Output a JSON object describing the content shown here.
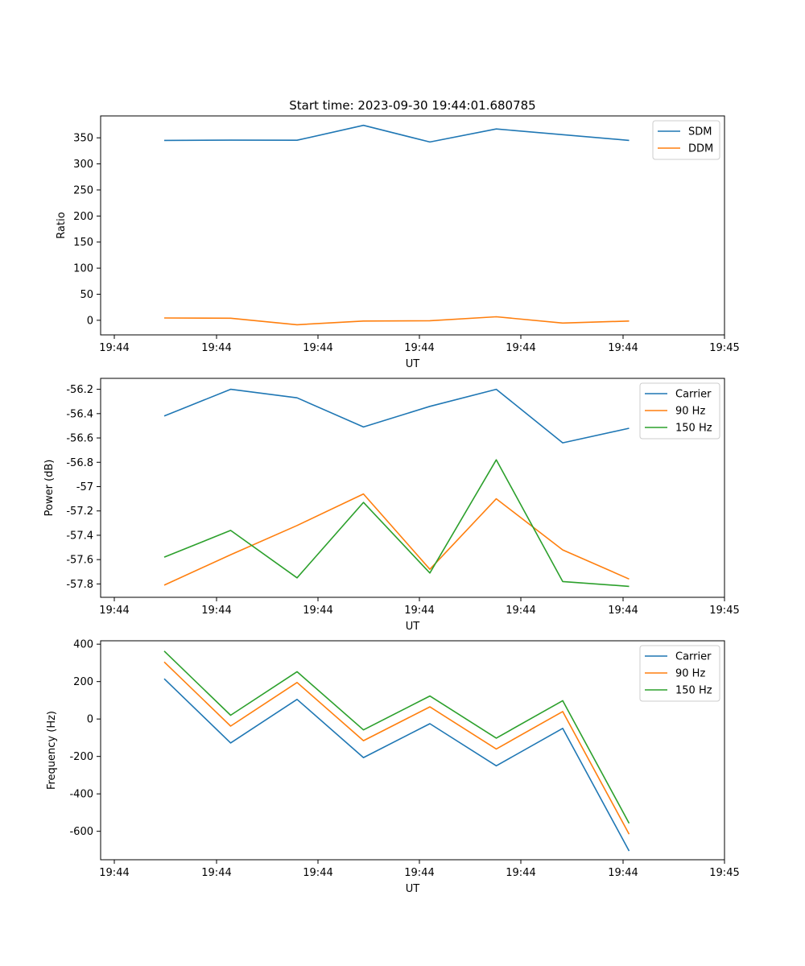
{
  "chart_data": [
    {
      "type": "line",
      "title": "Start time: 2023-09-30 19:44:01.680785",
      "xlabel": "UT",
      "ylabel": "Ratio",
      "xticks": [
        "19:44",
        "19:44",
        "19:44",
        "19:44",
        "19:44",
        "19:44",
        "19:45"
      ],
      "yticks": [
        0,
        50,
        100,
        150,
        200,
        250,
        300,
        350
      ],
      "ylim": [
        -28,
        392
      ],
      "x": [
        1,
        2,
        3,
        4,
        5,
        6,
        7,
        8
      ],
      "legend_position": "top-right",
      "series": [
        {
          "name": "SDM",
          "color": "#1f77b4",
          "values": [
            345,
            345.5,
            345.3,
            374,
            342,
            367,
            356,
            345
          ]
        },
        {
          "name": "DDM",
          "color": "#ff7f0e",
          "values": [
            4.5,
            4,
            -8.5,
            -1.5,
            -0.8,
            6.8,
            -5.3,
            -1.5
          ]
        }
      ]
    },
    {
      "type": "line",
      "title": "",
      "xlabel": "UT",
      "ylabel": "Power (dB)",
      "xticks": [
        "19:44",
        "19:44",
        "19:44",
        "19:44",
        "19:44",
        "19:44",
        "19:45"
      ],
      "yticks": [
        -56.2,
        -56.4,
        -56.6,
        -56.8,
        -57.0,
        -57.2,
        -57.4,
        -57.6,
        -57.8
      ],
      "ylim": [
        -57.91,
        -56.11
      ],
      "x": [
        1,
        2,
        3,
        4,
        5,
        6,
        7,
        8
      ],
      "legend_position": "top-right",
      "series": [
        {
          "name": "Carrier",
          "color": "#1f77b4",
          "values": [
            -56.42,
            -56.2,
            -56.27,
            -56.51,
            -56.34,
            -56.2,
            -56.64,
            -56.52
          ]
        },
        {
          "name": "90 Hz",
          "color": "#ff7f0e",
          "values": [
            -57.81,
            -57.56,
            -57.32,
            -57.06,
            -57.68,
            -57.1,
            -57.52,
            -57.76
          ]
        },
        {
          "name": "150 Hz",
          "color": "#2ca02c",
          "values": [
            -57.58,
            -57.36,
            -57.75,
            -57.13,
            -57.71,
            -56.78,
            -57.78,
            -57.82
          ]
        }
      ]
    },
    {
      "type": "line",
      "title": "",
      "xlabel": "UT",
      "ylabel": "Frequency (Hz)",
      "xticks": [
        "19:44",
        "19:44",
        "19:44",
        "19:44",
        "19:44",
        "19:44",
        "19:45"
      ],
      "yticks": [
        400,
        200,
        0,
        -200,
        -400,
        -600
      ],
      "ylim": [
        -752,
        418
      ],
      "x": [
        1,
        2,
        3,
        4,
        5,
        6,
        7,
        8
      ],
      "legend_position": "top-right",
      "series": [
        {
          "name": "Carrier",
          "color": "#1f77b4",
          "values": [
            215,
            -128,
            105,
            -206,
            -25,
            -250,
            -50,
            -705
          ]
        },
        {
          "name": "90 Hz",
          "color": "#ff7f0e",
          "values": [
            305,
            -38,
            195,
            -116,
            65,
            -160,
            40,
            -615
          ]
        },
        {
          "name": "150 Hz",
          "color": "#2ca02c",
          "values": [
            363,
            20,
            253,
            -58,
            123,
            -102,
            98,
            -557
          ]
        }
      ]
    }
  ]
}
